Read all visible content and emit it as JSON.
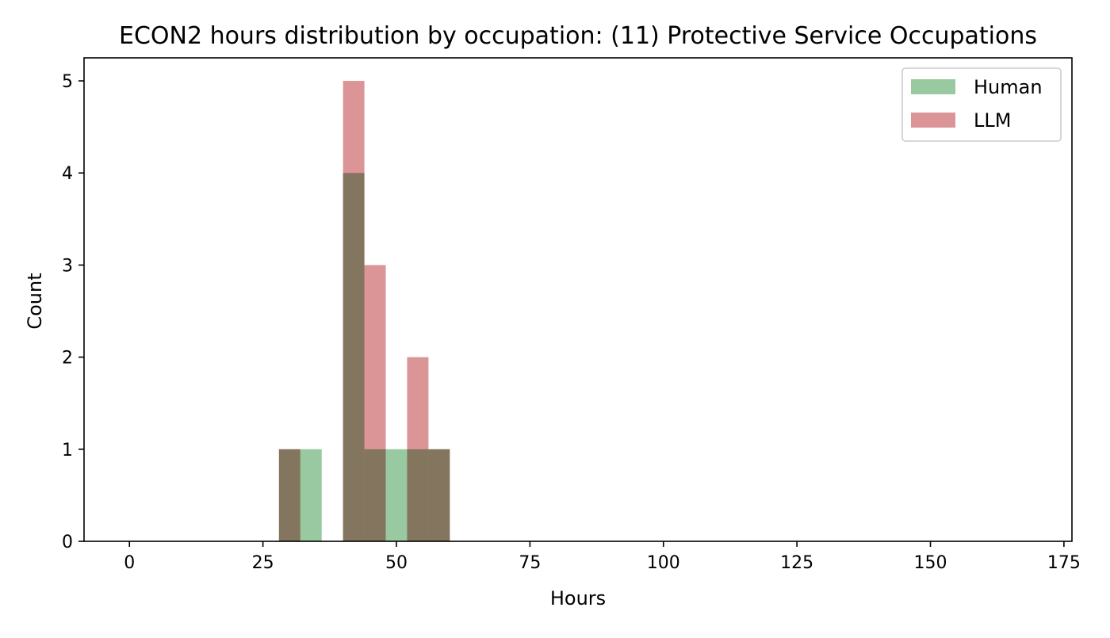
{
  "chart_data": {
    "type": "bar",
    "subtype": "overlapping-histogram",
    "title": "ECON2 hours distribution by occupation: (11) Protective Service Occupations",
    "xlabel": "Hours",
    "ylabel": "Count",
    "xlim": [
      -8.5,
      176.5
    ],
    "ylim": [
      0,
      5.25
    ],
    "xticks": [
      0,
      25,
      50,
      75,
      100,
      125,
      150,
      175
    ],
    "yticks": [
      0,
      1,
      2,
      3,
      4,
      5
    ],
    "grid": false,
    "legend_position": "top-right",
    "bin_width": 4,
    "series": [
      {
        "name": "Human",
        "color": "#99c9a0",
        "bins": [
          {
            "x0": 28,
            "x1": 32,
            "count": 1
          },
          {
            "x0": 32,
            "x1": 36,
            "count": 1
          },
          {
            "x0": 40,
            "x1": 44,
            "count": 4
          },
          {
            "x0": 44,
            "x1": 48,
            "count": 1
          },
          {
            "x0": 48,
            "x1": 52,
            "count": 1
          },
          {
            "x0": 52,
            "x1": 56,
            "count": 1
          },
          {
            "x0": 56,
            "x1": 60,
            "count": 1
          }
        ]
      },
      {
        "name": "LLM",
        "color": "#dc9597",
        "bins": [
          {
            "x0": 28,
            "x1": 32,
            "count": 1
          },
          {
            "x0": 40,
            "x1": 44,
            "count": 5
          },
          {
            "x0": 44,
            "x1": 48,
            "count": 3
          },
          {
            "x0": 52,
            "x1": 56,
            "count": 2
          },
          {
            "x0": 56,
            "x1": 60,
            "count": 1
          }
        ]
      }
    ]
  }
}
